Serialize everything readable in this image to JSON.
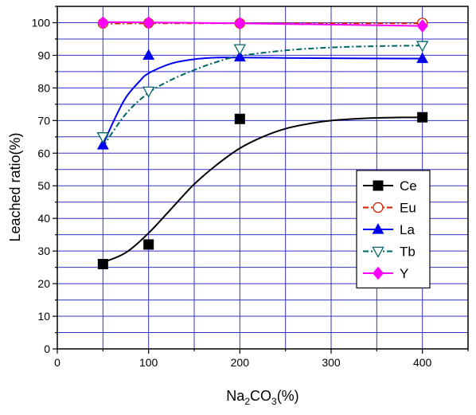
{
  "chart_data": {
    "type": "scatter",
    "x_label_base": "Na",
    "x_label_sub1": "2",
    "x_label_mid": "CO",
    "x_label_sub2": "3",
    "x_label_tail": "(%)",
    "ylabel": "Leached ratio(%)",
    "xlim": [
      0,
      450
    ],
    "ylim": [
      0,
      105
    ],
    "x_ticks": [
      "0",
      "100",
      "200",
      "300",
      "400"
    ],
    "x_tick_values": [
      0,
      100,
      200,
      300,
      400
    ],
    "y_ticks": [
      "0",
      "10",
      "20",
      "30",
      "40",
      "50",
      "60",
      "70",
      "80",
      "90",
      "100"
    ],
    "y_tick_values": [
      0,
      10,
      20,
      30,
      40,
      50,
      60,
      70,
      80,
      90,
      100
    ],
    "grid": true,
    "grid_color": "#3333cc",
    "legend_position": "center-right",
    "series": [
      {
        "name": "Ce",
        "color": "#000000",
        "marker": "square",
        "line_style": "solid",
        "x": [
          50,
          100,
          200,
          400
        ],
        "y": [
          26,
          32,
          70.5,
          71
        ],
        "fit": [
          [
            50,
            26.5
          ],
          [
            75,
            29.5
          ],
          [
            100,
            35.5
          ],
          [
            125,
            43
          ],
          [
            150,
            50.5
          ],
          [
            175,
            56.5
          ],
          [
            200,
            61.5
          ],
          [
            225,
            65
          ],
          [
            250,
            67.5
          ],
          [
            275,
            69
          ],
          [
            300,
            70
          ],
          [
            350,
            70.8
          ],
          [
            400,
            71
          ]
        ]
      },
      {
        "name": "Eu",
        "color": "#cc2200",
        "marker": "circle-open",
        "line_style": "dashdot",
        "x": [
          50,
          100,
          200,
          400
        ],
        "y": [
          99.8,
          99.9,
          99.8,
          99.9
        ],
        "fit": [
          [
            50,
            99.7
          ],
          [
            100,
            99.8
          ],
          [
            200,
            99.8
          ],
          [
            300,
            99.8
          ],
          [
            400,
            99.8
          ]
        ]
      },
      {
        "name": "La",
        "color": "#0000ee",
        "marker": "triangle-up",
        "line_style": "solid",
        "x": [
          50,
          100,
          200,
          400
        ],
        "y": [
          62.5,
          90,
          89.5,
          89
        ],
        "fit": [
          [
            50,
            62.5
          ],
          [
            62,
            70
          ],
          [
            75,
            77
          ],
          [
            90,
            82
          ],
          [
            100,
            84.5
          ],
          [
            125,
            87.5
          ],
          [
            150,
            88.8
          ],
          [
            175,
            89.3
          ],
          [
            200,
            89.3
          ],
          [
            250,
            89.2
          ],
          [
            300,
            89.1
          ],
          [
            400,
            89
          ]
        ]
      },
      {
        "name": "Tb",
        "color": "#006666",
        "marker": "triangle-down-open",
        "line_style": "dashdot",
        "x": [
          50,
          100,
          200,
          400
        ],
        "y": [
          65,
          79,
          92,
          93
        ],
        "fit": [
          [
            50,
            62
          ],
          [
            75,
            72
          ],
          [
            100,
            78.5
          ],
          [
            125,
            82.5
          ],
          [
            150,
            85.5
          ],
          [
            175,
            88
          ],
          [
            200,
            89.8
          ],
          [
            250,
            91.5
          ],
          [
            300,
            92.4
          ],
          [
            350,
            92.8
          ],
          [
            400,
            93
          ]
        ]
      },
      {
        "name": "Y",
        "color": "#ff00ff",
        "marker": "diamond",
        "line_style": "solid",
        "x": [
          50,
          100,
          200,
          400
        ],
        "y": [
          100,
          100,
          99.8,
          99
        ],
        "fit": [
          [
            50,
            100.2
          ],
          [
            100,
            100.1
          ],
          [
            200,
            99.8
          ],
          [
            300,
            99.4
          ],
          [
            400,
            99
          ]
        ]
      }
    ]
  }
}
